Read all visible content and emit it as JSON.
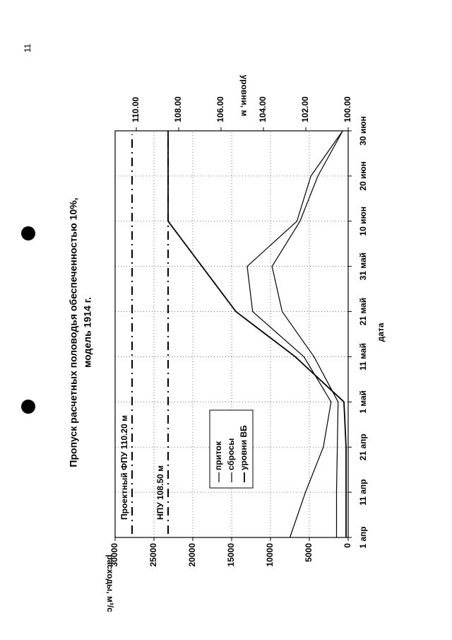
{
  "page_number": "11",
  "chart_data": {
    "type": "line",
    "title": "Пропуск расчетных половодья обеспеченностью 10%,",
    "subtitle": "модель 1914 г.",
    "x_label": "дата",
    "y_label": "расходы, м³/с",
    "y2_label": "уровни, м",
    "categories": [
      "1 апр",
      "11 апр",
      "21 апр",
      "1 май",
      "11 май",
      "21 май",
      "31 май",
      "10 июн",
      "20 июн",
      "30 июн"
    ],
    "series": [
      {
        "name": "приток",
        "color": "#000000",
        "values": [
          7500,
          5500,
          3200,
          2200,
          5700,
          12300,
          13000,
          6600,
          4800,
          700
        ]
      },
      {
        "name": "сбросы",
        "color": "#000000",
        "values": [
          1500,
          1500,
          1400,
          1300,
          4400,
          8500,
          9800,
          6200,
          3900,
          700
        ]
      },
      {
        "name": "уровни ВБ",
        "color": "#000000",
        "axis": "y2",
        "values": [
          100.1,
          100.1,
          100.1,
          100.2,
          102.5,
          105.3,
          106.9,
          108.5,
          108.5,
          108.5
        ]
      }
    ],
    "ylim": [
      0,
      30000
    ],
    "yticks": [
      0,
      5000,
      10000,
      15000,
      20000,
      25000,
      30000
    ],
    "y2lim": [
      100,
      111
    ],
    "y2ticks": [
      {
        "value": 100,
        "label": "100.00"
      },
      {
        "value": 102,
        "label": "102.00"
      },
      {
        "value": 104,
        "label": "104.00"
      },
      {
        "value": 106,
        "label": "106.00"
      },
      {
        "value": 108,
        "label": "108.00"
      },
      {
        "value": 110,
        "label": "110.00"
      }
    ],
    "reference_lines": [
      {
        "label": "Проектный ФПУ 110.20 м",
        "value": 110.2,
        "axis": "y2"
      },
      {
        "label": "НПУ 108.50 м",
        "value": 108.5,
        "axis": "y2"
      }
    ],
    "grid": true,
    "legend": "center"
  }
}
